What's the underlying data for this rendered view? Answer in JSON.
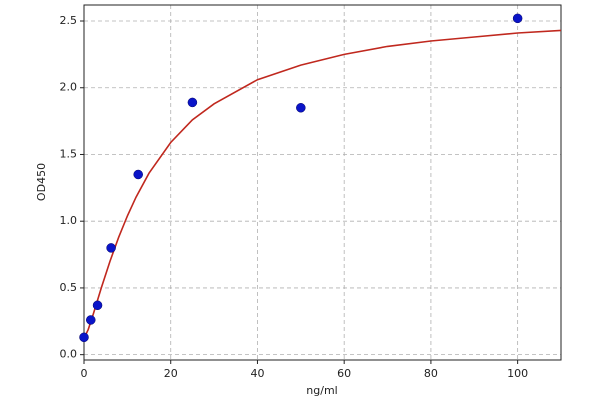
{
  "chart_data": {
    "type": "scatter",
    "x_label": "ng/ml",
    "y_label": "OD450",
    "x": [
      0,
      1.56,
      3.125,
      6.25,
      12.5,
      25,
      50,
      100
    ],
    "values": [
      0.13,
      0.26,
      0.37,
      0.8,
      1.35,
      1.89,
      1.85,
      2.52
    ],
    "color": "#0a14c8",
    "curve": {
      "color": "#c0281e",
      "x": [
        0,
        1,
        2,
        4,
        6,
        8,
        10,
        12,
        15,
        20,
        25,
        30,
        40,
        50,
        60,
        70,
        80,
        90,
        100,
        110
      ],
      "values": [
        0.12,
        0.19,
        0.29,
        0.5,
        0.7,
        0.88,
        1.04,
        1.18,
        1.36,
        1.59,
        1.76,
        1.88,
        2.06,
        2.17,
        2.25,
        2.31,
        2.35,
        2.38,
        2.41,
        2.43
      ]
    },
    "xlim": [
      0,
      110
    ],
    "ylim": [
      -0.04,
      2.62
    ],
    "xticks": [
      0,
      20,
      40,
      60,
      80,
      100
    ],
    "yticks": [
      {
        "value": 0,
        "label": "0.0"
      },
      0.5,
      {
        "value": 1,
        "label": "1.0"
      },
      1.5,
      {
        "value": 2,
        "label": "2.0"
      },
      2.5
    ],
    "grid": true
  }
}
